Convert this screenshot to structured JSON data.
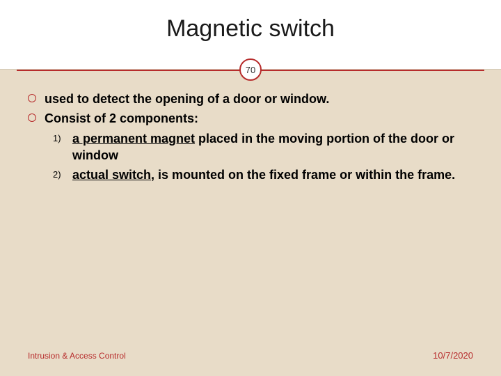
{
  "slide": {
    "title": "Magnetic switch",
    "number": "70",
    "colors": {
      "accent": "#b72c2c",
      "background": "#e8dcc8",
      "header_bg": "#ffffff",
      "text": "#000000"
    },
    "bullets": [
      {
        "text": "used to detect the opening of a door or window."
      },
      {
        "text": "Consist of 2 components:"
      }
    ],
    "sublist": [
      {
        "num": "1)",
        "underlined": "a permanent magnet",
        "rest": " placed in the moving portion of the door or window"
      },
      {
        "num": "2)",
        "underlined": "actual switch",
        "rest": ", is mounted on the fixed frame or within the frame."
      }
    ],
    "footer_left": "Intrusion & Access Control",
    "footer_right": "10/7/2020"
  }
}
